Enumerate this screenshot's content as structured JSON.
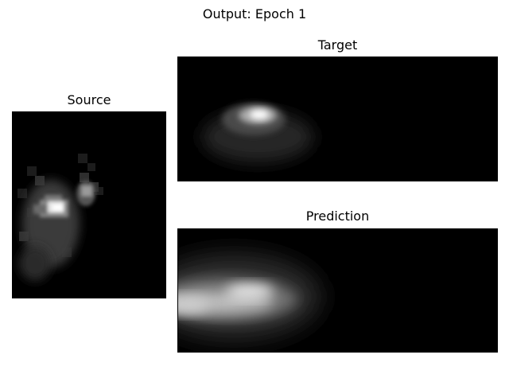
{
  "figure": {
    "title": "Output: Epoch 1"
  },
  "panels": {
    "source": {
      "title": "Source"
    },
    "target": {
      "title": "Target"
    },
    "prediction": {
      "title": "Prediction"
    }
  },
  "colormap": "gray"
}
